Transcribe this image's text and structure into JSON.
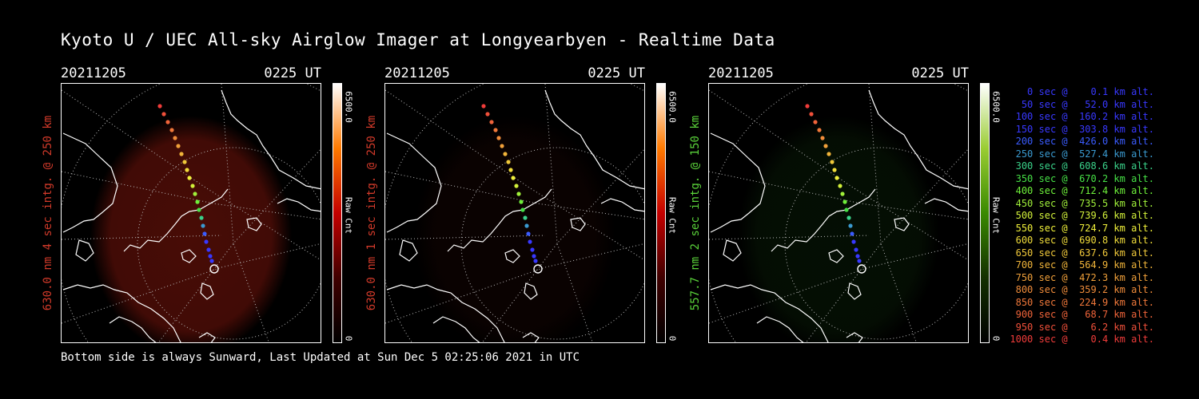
{
  "title": "Kyoto U / UEC All-sky Airglow Imager at Longyearbyen - Realtime Data",
  "footer": "Bottom side is always Sunward, Last Updated at Sun Dec  5 02:25:06 2021 in UTC",
  "panels": [
    {
      "date": "20211205",
      "time": "0225 UT",
      "ylabel": "630.0 nm 4 sec intg. @ 250 km",
      "label_color": "#d23a2a",
      "colorbar_max": "6500.0",
      "colorbar_min": "0",
      "colorbar_label": "Raw Cnt",
      "colormap": [
        "#ffffff",
        "#ff7a00",
        "#c40000",
        "#400000",
        "#000000"
      ],
      "glow": "#5a0f08",
      "glow_level": 0.8
    },
    {
      "date": "20211205",
      "time": "0225 UT",
      "ylabel": "630.0 nm 1 sec intg. @ 250 km",
      "label_color": "#d23a2a",
      "colorbar_max": "6500.0",
      "colorbar_min": "0",
      "colorbar_label": "Raw Cnt",
      "colormap": [
        "#ffffff",
        "#ff7a00",
        "#c40000",
        "#400000",
        "#000000"
      ],
      "glow": "#2a0704",
      "glow_level": 0.25
    },
    {
      "date": "20211205",
      "time": "0225 UT",
      "ylabel": "557.7 nm 2 sec intg. @ 150 km",
      "label_color": "#5ad23a",
      "colorbar_max": "6500.0",
      "colorbar_min": "0",
      "colorbar_label": "Raw Cnt",
      "colormap": [
        "#ffffff",
        "#9acd32",
        "#3a8a00",
        "#143000",
        "#000000"
      ],
      "glow": "#0d2a0a",
      "glow_level": 0.35
    }
  ],
  "legend": [
    {
      "text": "   0 sec @    0.1 km alt.",
      "color": "#3838ff"
    },
    {
      "text": "  50 sec @   52.0 km alt.",
      "color": "#3838ff"
    },
    {
      "text": " 100 sec @  160.2 km alt.",
      "color": "#3838ff"
    },
    {
      "text": " 150 sec @  303.8 km alt.",
      "color": "#3838ff"
    },
    {
      "text": " 200 sec @  426.0 km alt.",
      "color": "#3a5cff"
    },
    {
      "text": " 250 sec @  527.4 km alt.",
      "color": "#3a9ad0"
    },
    {
      "text": " 300 sec @  608.6 km alt.",
      "color": "#3ad28a"
    },
    {
      "text": " 350 sec @  670.2 km alt.",
      "color": "#46e046"
    },
    {
      "text": " 400 sec @  712.4 km alt.",
      "color": "#6ef03a"
    },
    {
      "text": " 450 sec @  735.5 km alt.",
      "color": "#a0f03a"
    },
    {
      "text": " 500 sec @  739.6 km alt.",
      "color": "#d2f03a"
    },
    {
      "text": " 550 sec @  724.7 km alt.",
      "color": "#f0f03a"
    },
    {
      "text": " 600 sec @  690.8 km alt.",
      "color": "#f0dc3a"
    },
    {
      "text": " 650 sec @  637.6 km alt.",
      "color": "#f0c83a"
    },
    {
      "text": " 700 sec @  564.9 km alt.",
      "color": "#f0b43a"
    },
    {
      "text": " 750 sec @  472.3 km alt.",
      "color": "#f0a03a"
    },
    {
      "text": " 800 sec @  359.2 km alt.",
      "color": "#f08c3a"
    },
    {
      "text": " 850 sec @  224.9 km alt.",
      "color": "#f0783a"
    },
    {
      "text": " 900 sec @   68.7 km alt.",
      "color": "#f0643a"
    },
    {
      "text": " 950 sec @    6.2 km alt.",
      "color": "#f0503a"
    },
    {
      "text": "1000 sec @    0.4 km alt.",
      "color": "#f03c3a"
    }
  ]
}
